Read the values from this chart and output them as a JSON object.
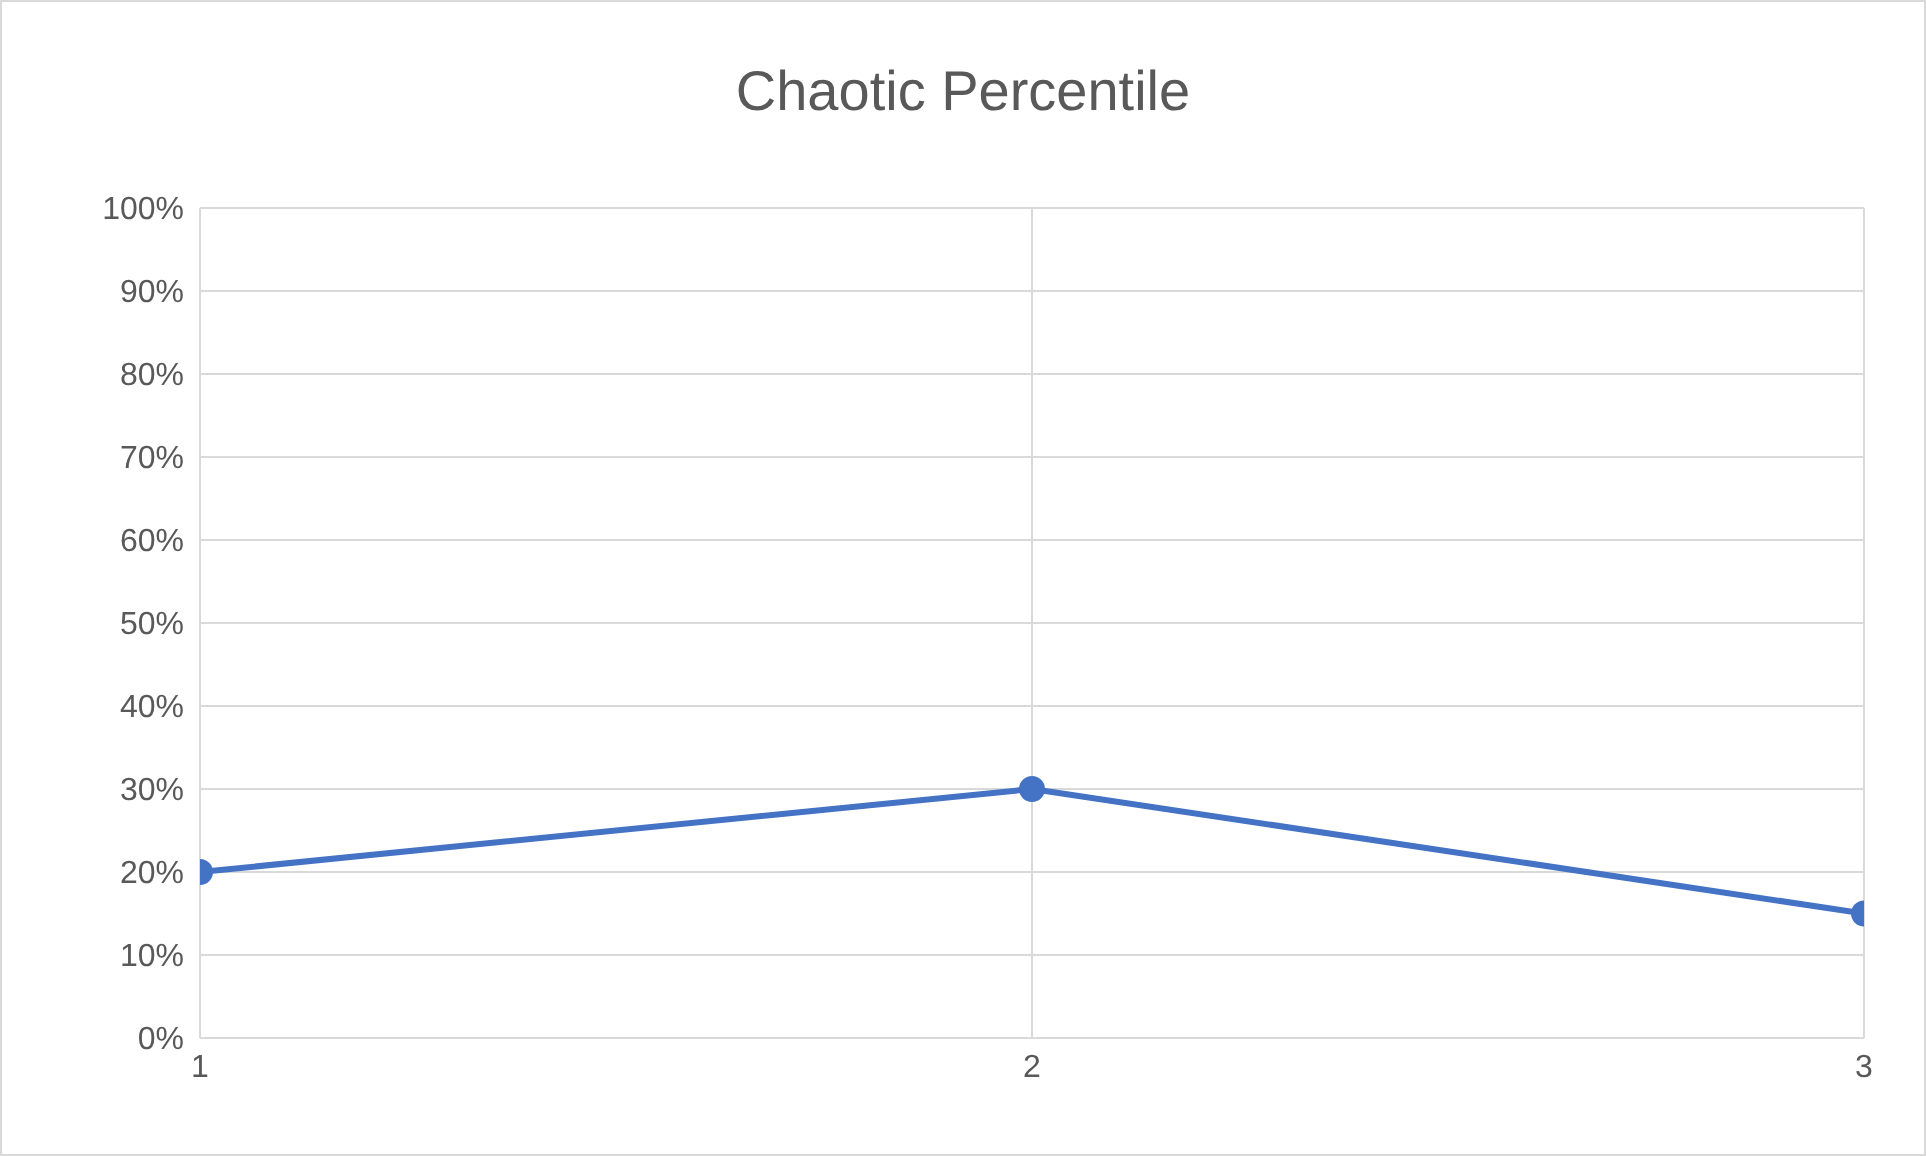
{
  "chart_data": {
    "type": "line",
    "title": "Chaotic Percentile",
    "x": [
      1,
      2,
      3
    ],
    "series": [
      {
        "color": "#4472c4",
        "values": [
          20,
          30,
          15
        ]
      }
    ],
    "xlim": [
      1,
      3
    ],
    "xticks": [
      1,
      2,
      3
    ],
    "ylim": [
      0,
      100
    ],
    "yticks": [
      {
        "value": 0,
        "label": "0%"
      },
      {
        "value": 10,
        "label": "10%"
      },
      {
        "value": 20,
        "label": "20%"
      },
      {
        "value": 30,
        "label": "30%"
      },
      {
        "value": 40,
        "label": "40%"
      },
      {
        "value": 50,
        "label": "50%"
      },
      {
        "value": 60,
        "label": "60%"
      },
      {
        "value": 70,
        "label": "70%"
      },
      {
        "value": 80,
        "label": "80%"
      },
      {
        "value": 90,
        "label": "90%"
      },
      {
        "value": 100,
        "label": "100%"
      }
    ],
    "grid": true,
    "marker": "circle",
    "line_style": "solid"
  }
}
